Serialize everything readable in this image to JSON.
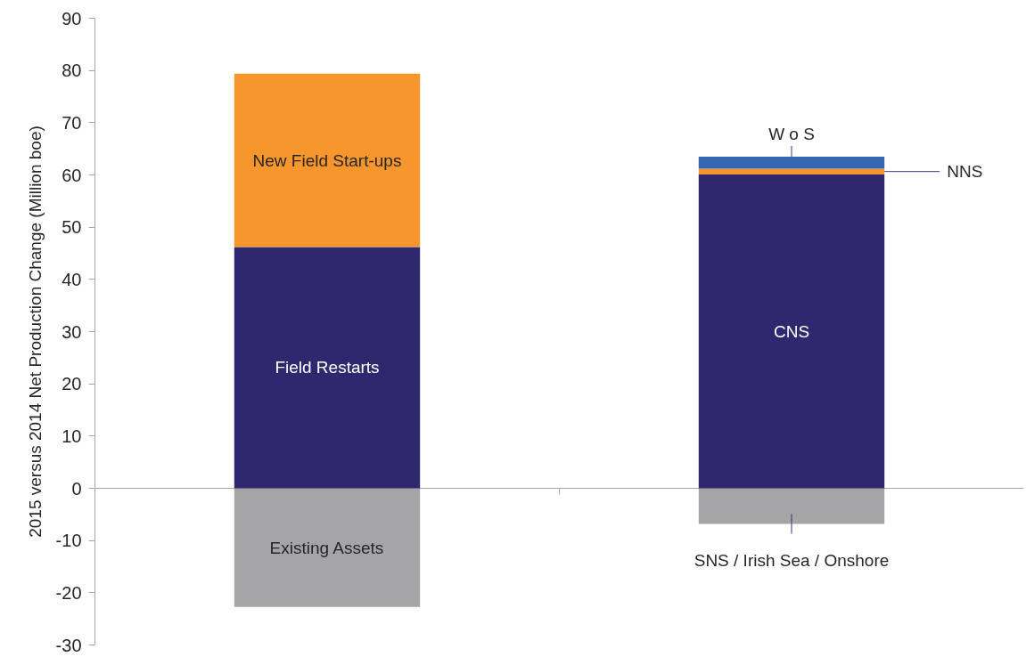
{
  "chart_data": {
    "type": "bar",
    "stacked": true,
    "ylabel": "2015 versus 2014 Net Production Change (Million boe)",
    "categories": [
      null,
      null
    ],
    "ylim": [
      -30,
      90
    ],
    "yticks": [
      -30,
      -20,
      -10,
      0,
      10,
      20,
      30,
      40,
      50,
      60,
      70,
      80,
      90
    ],
    "series": [
      {
        "color": "#a5a5a8",
        "values": [
          -22.7,
          -6.8
        ],
        "value_labels": [
          "Existing Assets",
          "SNS / Irish Sea / Onshore"
        ]
      },
      {
        "color": "#30286e",
        "values": [
          46.2,
          60.1
        ],
        "value_labels": [
          "Field Restarts",
          "CNS"
        ]
      },
      {
        "color": "#f7962c",
        "values": [
          33.2,
          1.1
        ],
        "value_labels": [
          "New Field Start-ups",
          "NNS"
        ]
      },
      {
        "color": "#3567b2",
        "values": [
          null,
          2.3
        ],
        "value_labels": [
          null,
          "W o S"
        ]
      }
    ]
  }
}
